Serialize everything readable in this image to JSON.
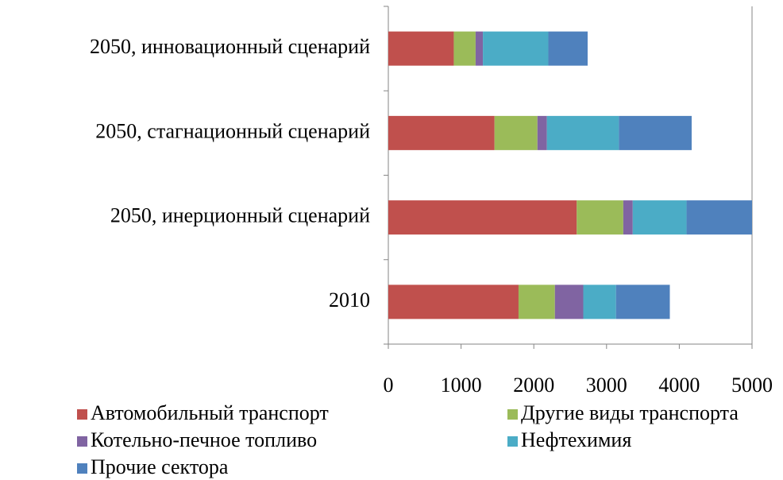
{
  "chart_data": {
    "type": "stacked-barh",
    "categories": [
      "2010",
      "2050, инерционный сценарий",
      "2050, стагнационный сценарий",
      "2050, инновационный сценарий"
    ],
    "series": [
      {
        "name": "Автомобильный транспорт",
        "color": "#c0504d",
        "values": [
          1790,
          2590,
          1460,
          900
        ]
      },
      {
        "name": "Другие виды транспорта",
        "color": "#9bbb59",
        "values": [
          500,
          640,
          590,
          300
        ]
      },
      {
        "name": "Котельно-печное топливо",
        "color": "#8064a2",
        "values": [
          390,
          130,
          130,
          100
        ]
      },
      {
        "name": "Нефтехимия",
        "color": "#4bacc6",
        "values": [
          450,
          740,
          990,
          900
        ]
      },
      {
        "name": "Прочие сектора",
        "color": "#4f81bd",
        "values": [
          740,
          900,
          1000,
          540
        ]
      }
    ],
    "xlim": [
      0,
      5000
    ],
    "xticks": [
      0,
      1000,
      2000,
      3000,
      4000,
      5000
    ]
  }
}
